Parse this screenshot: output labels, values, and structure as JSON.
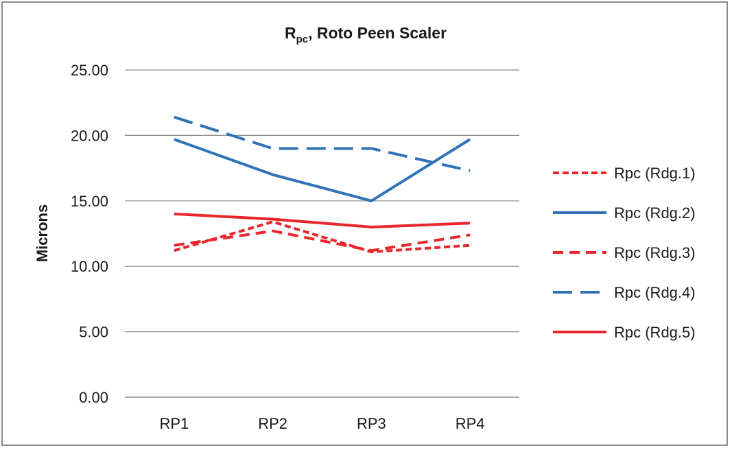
{
  "chart_data": {
    "type": "line",
    "title": {
      "main": "R",
      "subscript": "pc",
      "rest": ", Roto Peen Scaler"
    },
    "xlabel": "",
    "ylabel": "Microns",
    "categories": [
      "RP1",
      "RP2",
      "RP3",
      "RP4"
    ],
    "ylim": [
      0,
      25
    ],
    "yticks": [
      "0.00",
      "5.00",
      "10.00",
      "15.00",
      "20.00",
      "25.00"
    ],
    "grid": true,
    "legend_position": "right",
    "series": [
      {
        "name": "Rpc (Rdg.1)",
        "values": [
          11.2,
          13.4,
          11.1,
          11.6
        ],
        "color": "#e8262b",
        "dash": "short-dash"
      },
      {
        "name": "Rpc (Rdg.2)",
        "values": [
          19.7,
          17.0,
          15.0,
          19.7
        ],
        "color": "#2f72b8",
        "dash": "solid"
      },
      {
        "name": "Rpc (Rdg.3)",
        "values": [
          11.6,
          12.7,
          11.2,
          12.4
        ],
        "color": "#e8262b",
        "dash": "dash"
      },
      {
        "name": "Rpc (Rdg.4)",
        "values": [
          21.4,
          19.0,
          19.0,
          17.3
        ],
        "color": "#2f72b8",
        "dash": "long-dash"
      },
      {
        "name": "Rpc (Rdg.5)",
        "values": [
          14.0,
          13.6,
          13.0,
          13.3
        ],
        "color": "#e8262b",
        "dash": "solid"
      }
    ]
  }
}
